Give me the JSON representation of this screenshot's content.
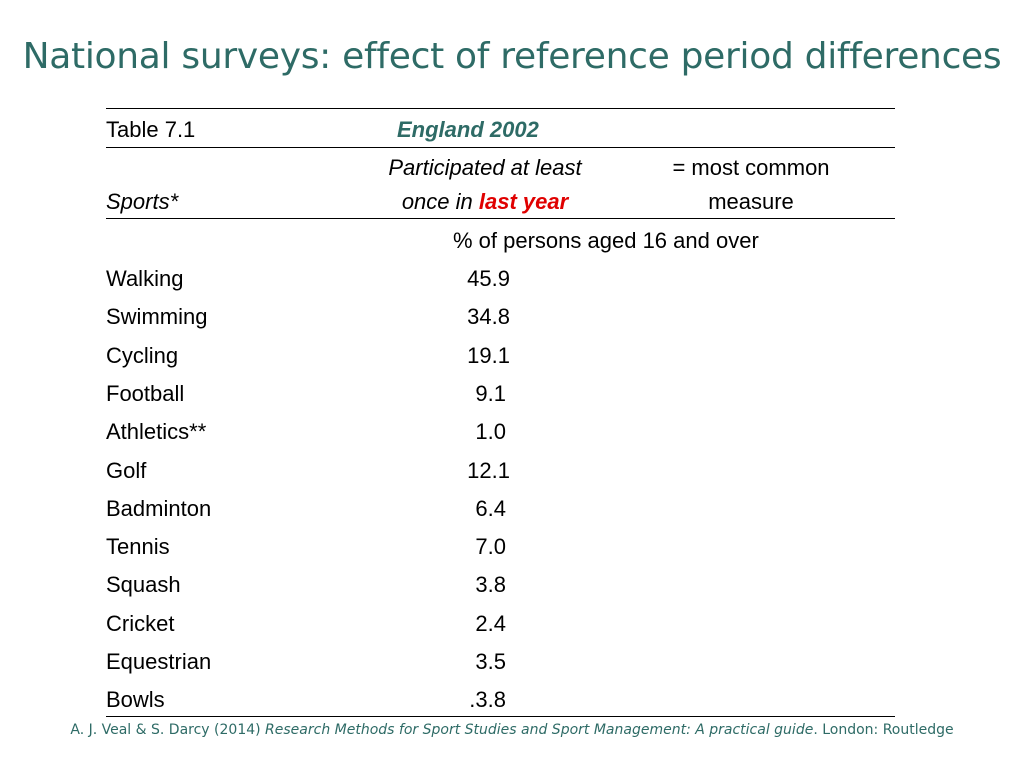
{
  "slide": {
    "title": "National surveys: effect of reference period differences"
  },
  "table": {
    "label": "Table 7.1",
    "region_year": "England 2002",
    "sports_header": "Sports*",
    "col1_header_line1": "Participated at least",
    "col1_header_line2_prefix": "once in ",
    "col1_header_line2_highlight": "last year",
    "col2_header_line1": "= most common",
    "col2_header_line2": "measure",
    "units_note": "% of persons aged 16 and over",
    "rows": [
      {
        "sport": "Walking",
        "value": "45.9"
      },
      {
        "sport": "Swimming",
        "value": "34.8"
      },
      {
        "sport": "Cycling",
        "value": "19.1"
      },
      {
        "sport": "Football",
        "value": "9.1"
      },
      {
        "sport": "Athletics**",
        "value": "1.0"
      },
      {
        "sport": "Golf",
        "value": "12.1"
      },
      {
        "sport": "Badminton",
        "value": "6.4"
      },
      {
        "sport": "Tennis",
        "value": "7.0"
      },
      {
        "sport": "Squash",
        "value": "3.8"
      },
      {
        "sport": "Cricket",
        "value": "2.4"
      },
      {
        "sport": "Equestrian",
        "value": "3.5"
      },
      {
        "sport": "Bowls",
        "value": ".3.8"
      }
    ]
  },
  "citation": {
    "authors": "A. J. Veal & S. Darcy (2014) ",
    "book_title": "Research Methods for Sport Studies and Sport Management: A practical guide",
    "publisher": ". London: Routledge"
  },
  "colors": {
    "title": "#2E6B66",
    "highlight": "#E00000"
  }
}
